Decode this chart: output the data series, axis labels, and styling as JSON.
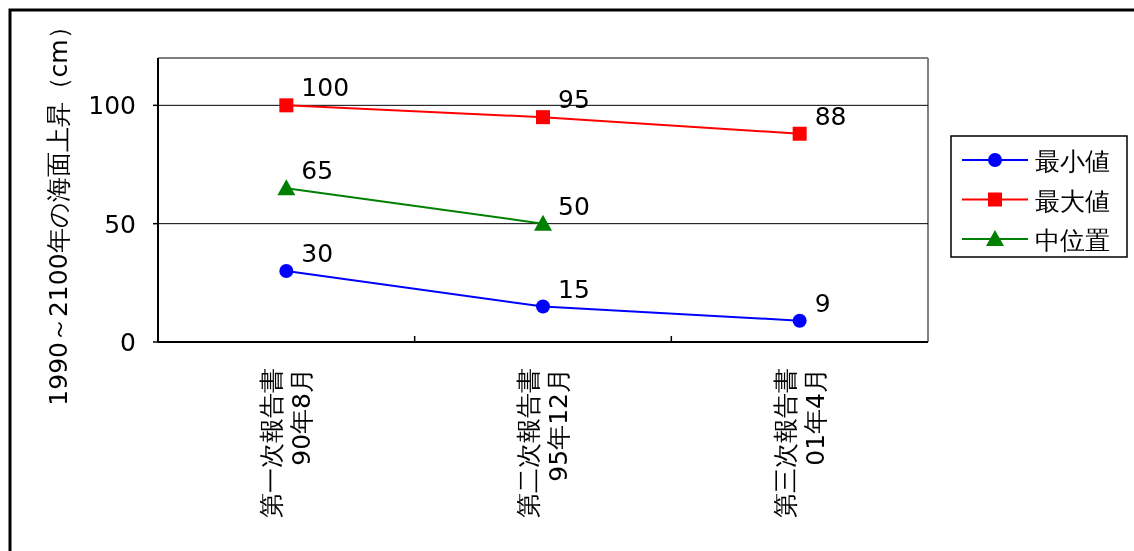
{
  "chart_data": {
    "type": "line",
    "ylabel": "1990～2100年の海面上昇（cm）",
    "categories": [
      "第一次報告書\n90年8月",
      "第二次報告書\n95年12月",
      "第三次報告書\n01年4月"
    ],
    "series": [
      {
        "name": "最小値",
        "color": "#0000ff",
        "marker": "circle",
        "values": [
          30,
          15,
          9
        ]
      },
      {
        "name": "最大値",
        "color": "#ff0000",
        "marker": "square",
        "values": [
          100,
          95,
          88
        ]
      },
      {
        "name": "中位置",
        "color": "#008000",
        "marker": "triangle",
        "values": [
          65,
          50,
          null
        ]
      }
    ],
    "ylim": [
      0,
      120
    ],
    "yticks": [
      0,
      50,
      100
    ],
    "grid": "y",
    "legend": "right",
    "data_labels": true,
    "line_style": "solid"
  }
}
